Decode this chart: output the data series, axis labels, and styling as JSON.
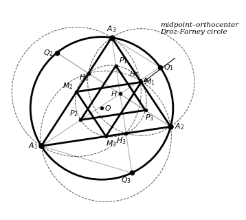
{
  "bg_color": "#ffffff",
  "ann_line1": "midpoint–orthocenter",
  "ann_line2": "Droz-Farney circle",
  "theta_A1_deg": 212,
  "theta_A2_deg": 345,
  "theta_A3_deg": 82,
  "R": 1.0
}
